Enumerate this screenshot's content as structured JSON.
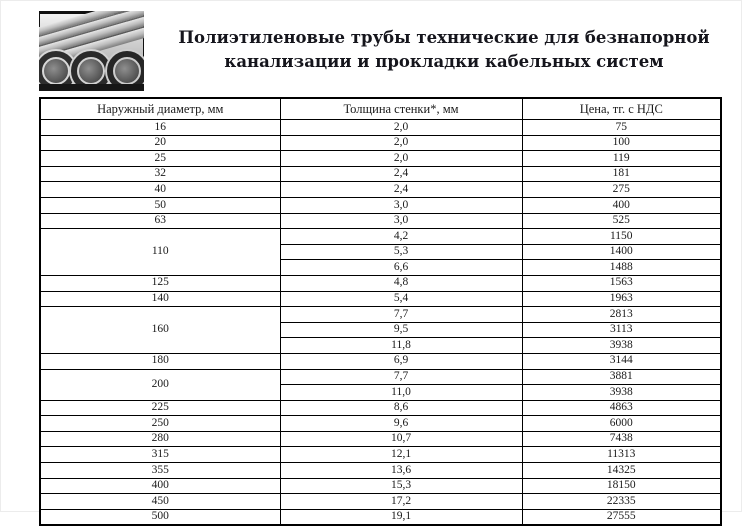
{
  "header": {
    "title_line1": "Полиэтиленовые трубы технические для безнапорной",
    "title_line2": "канализации и прокладки кабельных систем",
    "image": "stacked-polyethylene-pipes-photo"
  },
  "table": {
    "columns": [
      "Наружный диаметр, мм",
      "Толщина стенки*, мм",
      "Цена, тг. с НДС"
    ],
    "groups": [
      {
        "diameter": "16",
        "rows": [
          {
            "thickness": "2,0",
            "price": "75"
          }
        ]
      },
      {
        "diameter": "20",
        "rows": [
          {
            "thickness": "2,0",
            "price": "100"
          }
        ]
      },
      {
        "diameter": "25",
        "rows": [
          {
            "thickness": "2,0",
            "price": "119"
          }
        ]
      },
      {
        "diameter": "32",
        "rows": [
          {
            "thickness": "2,4",
            "price": "181"
          }
        ]
      },
      {
        "diameter": "40",
        "rows": [
          {
            "thickness": "2,4",
            "price": "275"
          }
        ]
      },
      {
        "diameter": "50",
        "rows": [
          {
            "thickness": "3,0",
            "price": "400"
          }
        ]
      },
      {
        "diameter": "63",
        "rows": [
          {
            "thickness": "3,0",
            "price": "525"
          }
        ]
      },
      {
        "diameter": "110",
        "rows": [
          {
            "thickness": "4,2",
            "price": "1150"
          },
          {
            "thickness": "5,3",
            "price": "1400"
          },
          {
            "thickness": "6,6",
            "price": "1488"
          }
        ]
      },
      {
        "diameter": "125",
        "rows": [
          {
            "thickness": "4,8",
            "price": "1563"
          }
        ]
      },
      {
        "diameter": "140",
        "rows": [
          {
            "thickness": "5,4",
            "price": "1963"
          }
        ]
      },
      {
        "diameter": "160",
        "rows": [
          {
            "thickness": "7,7",
            "price": "2813"
          },
          {
            "thickness": "9,5",
            "price": "3113"
          },
          {
            "thickness": "11,8",
            "price": "3938"
          }
        ]
      },
      {
        "diameter": "180",
        "rows": [
          {
            "thickness": "6,9",
            "price": "3144"
          }
        ]
      },
      {
        "diameter": "200",
        "rows": [
          {
            "thickness": "7,7",
            "price": "3881"
          },
          {
            "thickness": "11,0",
            "price": "3938"
          }
        ]
      },
      {
        "diameter": "225",
        "rows": [
          {
            "thickness": "8,6",
            "price": "4863"
          }
        ]
      },
      {
        "diameter": "250",
        "rows": [
          {
            "thickness": "9,6",
            "price": "6000"
          }
        ]
      },
      {
        "diameter": "280",
        "rows": [
          {
            "thickness": "10,7",
            "price": "7438"
          }
        ]
      },
      {
        "diameter": "315",
        "rows": [
          {
            "thickness": "12,1",
            "price": "11313"
          }
        ]
      },
      {
        "diameter": "355",
        "rows": [
          {
            "thickness": "13,6",
            "price": "14325"
          }
        ]
      },
      {
        "diameter": "400",
        "rows": [
          {
            "thickness": "15,3",
            "price": "18150"
          }
        ]
      },
      {
        "diameter": "450",
        "rows": [
          {
            "thickness": "17,2",
            "price": "22335"
          }
        ]
      },
      {
        "diameter": "500",
        "rows": [
          {
            "thickness": "19,1",
            "price": "27555"
          }
        ]
      }
    ]
  },
  "colors": {
    "text": "#1a1a1a",
    "title": "#15151c",
    "table_border": "#000000",
    "background": "#ffffff"
  }
}
